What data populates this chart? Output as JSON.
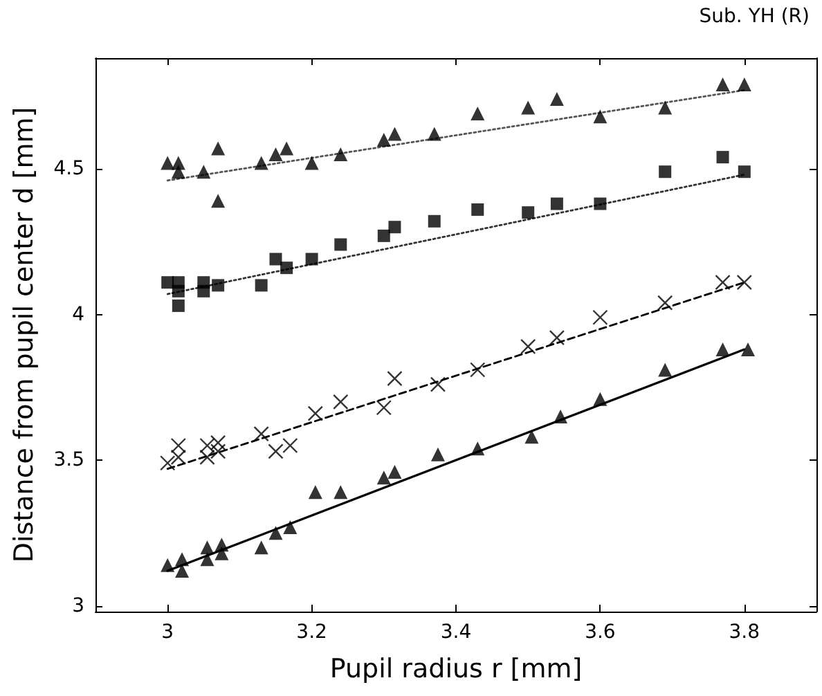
{
  "chart_data": {
    "type": "scatter",
    "subtitle": "Sub. YH (R)",
    "xlabel": "Pupil radius r [mm]",
    "ylabel": "Distance from pupil center d [mm]",
    "xlim": [
      2.9,
      3.9
    ],
    "xticks": [
      3,
      3.2,
      3.4,
      3.6,
      3.8
    ],
    "ylim": [
      2.98,
      4.88
    ],
    "yticks": [
      3,
      3.5,
      4,
      4.5
    ],
    "grid": false,
    "series": [
      {
        "marker": "triangle",
        "color": "#000000",
        "x": [
          3.0,
          3.015,
          3.015,
          3.05,
          3.07,
          3.07,
          3.13,
          3.15,
          3.165,
          3.2,
          3.24,
          3.3,
          3.315,
          3.37,
          3.43,
          3.5,
          3.54,
          3.6,
          3.69,
          3.77,
          3.8
        ],
        "values": [
          4.52,
          4.52,
          4.49,
          4.49,
          4.57,
          4.39,
          4.52,
          4.55,
          4.57,
          4.52,
          4.55,
          4.6,
          4.62,
          4.62,
          4.69,
          4.71,
          4.74,
          4.68,
          4.71,
          4.79,
          4.79
        ]
      },
      {
        "marker": "square",
        "color": "#000000",
        "x": [
          3.0,
          3.015,
          3.015,
          3.015,
          3.05,
          3.05,
          3.07,
          3.13,
          3.15,
          3.165,
          3.2,
          3.24,
          3.3,
          3.315,
          3.37,
          3.43,
          3.5,
          3.54,
          3.6,
          3.69,
          3.77,
          3.8
        ],
        "values": [
          4.11,
          4.11,
          4.08,
          4.03,
          4.11,
          4.08,
          4.1,
          4.1,
          4.19,
          4.16,
          4.19,
          4.24,
          4.27,
          4.3,
          4.32,
          4.36,
          4.35,
          4.38,
          4.38,
          4.49,
          4.54,
          4.49
        ]
      },
      {
        "marker": "cross",
        "color": "#000000",
        "x": [
          3.0,
          3.015,
          3.015,
          3.055,
          3.055,
          3.07,
          3.07,
          3.13,
          3.15,
          3.17,
          3.205,
          3.24,
          3.3,
          3.315,
          3.375,
          3.43,
          3.5,
          3.54,
          3.6,
          3.69,
          3.77,
          3.8
        ],
        "values": [
          3.49,
          3.55,
          3.51,
          3.55,
          3.51,
          3.56,
          3.53,
          3.59,
          3.53,
          3.55,
          3.66,
          3.7,
          3.68,
          3.78,
          3.76,
          3.81,
          3.89,
          3.92,
          3.99,
          4.04,
          4.11,
          4.11
        ]
      },
      {
        "marker": "triangle",
        "color": "#000000",
        "x": [
          3.0,
          3.02,
          3.02,
          3.055,
          3.055,
          3.075,
          3.075,
          3.13,
          3.15,
          3.17,
          3.205,
          3.24,
          3.3,
          3.315,
          3.375,
          3.43,
          3.505,
          3.545,
          3.6,
          3.69,
          3.77,
          3.805
        ],
        "values": [
          3.14,
          3.16,
          3.12,
          3.2,
          3.16,
          3.21,
          3.18,
          3.2,
          3.25,
          3.27,
          3.39,
          3.39,
          3.44,
          3.46,
          3.52,
          3.54,
          3.58,
          3.65,
          3.71,
          3.81,
          3.88,
          3.88
        ]
      },
      {
        "type": "line",
        "line_style": "dotted",
        "color": "#555555",
        "x": [
          3.0,
          3.8
        ],
        "values": [
          4.46,
          4.77
        ]
      },
      {
        "type": "line",
        "line_style": "dotted",
        "color": "#333333",
        "x": [
          3.0,
          3.8
        ],
        "values": [
          4.07,
          4.48
        ]
      },
      {
        "type": "line",
        "line_style": "dashed",
        "color": "#000000",
        "x": [
          3.0,
          3.8
        ],
        "values": [
          3.47,
          4.11
        ]
      },
      {
        "type": "line",
        "line_style": "solid",
        "color": "#000000",
        "x": [
          3.0,
          3.8
        ],
        "values": [
          3.12,
          3.88
        ]
      }
    ]
  }
}
